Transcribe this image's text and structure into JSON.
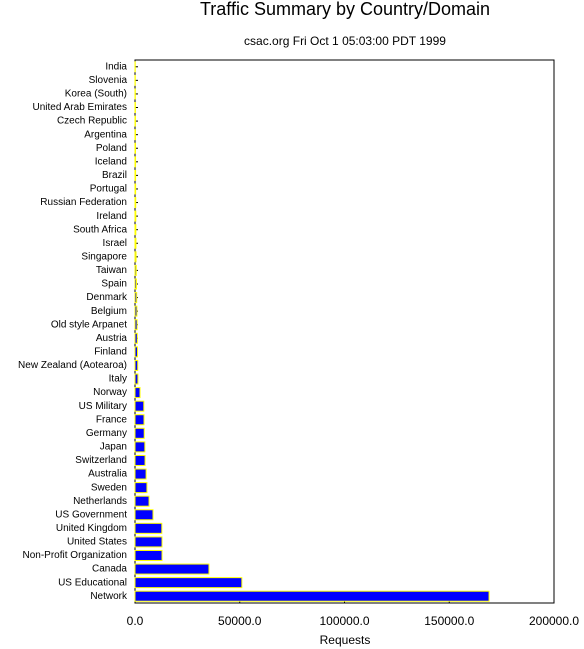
{
  "chart_data": {
    "type": "barh",
    "title": "Traffic Summary by Country/Domain",
    "subtitle": "csac.org Fri Oct  1 05:03:00 PDT 1999",
    "xlabel": "Requests",
    "categories": [
      "India",
      "Slovenia",
      "Korea (South)",
      "United Arab Emirates",
      "Czech Republic",
      "Argentina",
      "Poland",
      "Iceland",
      "Brazil",
      "Portugal",
      "Russian Federation",
      "Ireland",
      "South Africa",
      "Israel",
      "Singapore",
      "Taiwan",
      "Spain",
      "Denmark",
      "Belgium",
      "Old style Arpanet",
      "Austria",
      "Finland",
      "New Zealand (Aotearoa)",
      "Italy",
      "Norway",
      "US Military",
      "France",
      "Germany",
      "Japan",
      "Switzerland",
      "Australia",
      "Sweden",
      "Netherlands",
      "US Government",
      "United Kingdom",
      "United States",
      "Non-Profit Organization",
      "Canada",
      "US Educational",
      "Network"
    ],
    "values": [
      100,
      120,
      150,
      180,
      200,
      220,
      240,
      260,
      280,
      300,
      350,
      380,
      400,
      450,
      500,
      600,
      700,
      800,
      900,
      1000,
      1100,
      1200,
      1300,
      1400,
      2400,
      4200,
      4300,
      4400,
      4700,
      4800,
      5300,
      5700,
      6700,
      8600,
      12800,
      12900,
      12900,
      35300,
      51000,
      169000
    ],
    "color": "#0000ff",
    "edgecolor": "#ffff00",
    "xlim": [
      0,
      200000
    ],
    "xticks": [
      {
        "value": 0,
        "label": "0.0"
      },
      {
        "value": 50000,
        "label": "50000.0"
      },
      {
        "value": 100000,
        "label": "100000.0"
      },
      {
        "value": 150000,
        "label": "150000.0"
      },
      {
        "value": 200000,
        "label": "200000.0"
      }
    ]
  }
}
